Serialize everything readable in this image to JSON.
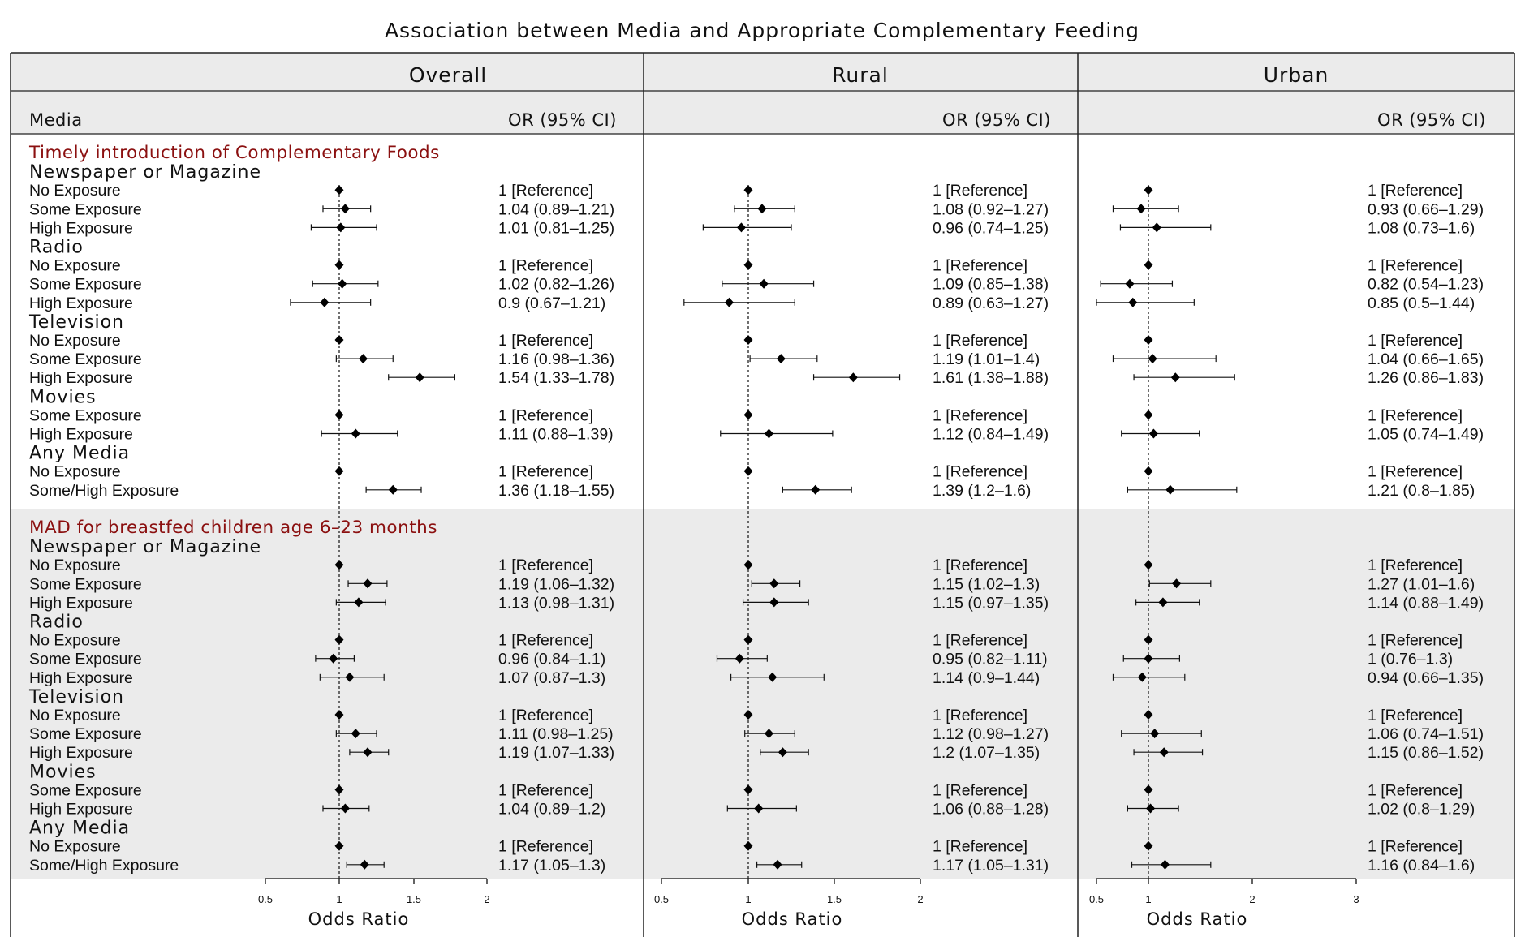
{
  "chart_data": {
    "type": "forest",
    "title": "Association between Media and Appropriate Complementary Feeding",
    "column_headers": {
      "label": "Media",
      "value": "OR (95% CI)"
    },
    "xlabel": "Odds Ratio",
    "reference_line": 1,
    "colors": {
      "section_text": "#8b1010",
      "shade": "#ebebeb",
      "header_band": "#ebebeb",
      "text": "#111111"
    },
    "panels": [
      {
        "name": "Overall",
        "ticks": [
          "0.5",
          "1",
          "1.5",
          "2"
        ],
        "xlim": [
          0.5,
          2
        ]
      },
      {
        "name": "Rural",
        "ticks": [
          "0.5",
          "1",
          "1.5",
          "2"
        ],
        "xlim": [
          0.5,
          2
        ]
      },
      {
        "name": "Urban",
        "ticks": [
          "0.5",
          "1",
          "2",
          "3"
        ],
        "xlim": [
          0.5,
          3
        ]
      }
    ],
    "sections": [
      {
        "title": "Timely introduction of Complementary Foods",
        "shaded": false,
        "groups": [
          {
            "name": "Newspaper or Magazine",
            "rows": [
              {
                "label": "No Exposure",
                "values": [
                  {
                    "or": 1,
                    "text": "1 [Reference]"
                  },
                  {
                    "or": 1,
                    "text": "1 [Reference]"
                  },
                  {
                    "or": 1,
                    "text": "1 [Reference]"
                  }
                ]
              },
              {
                "label": "Some Exposure",
                "values": [
                  {
                    "or": 1.04,
                    "lo": 0.89,
                    "hi": 1.21,
                    "text": "1.04 (0.89–1.21)"
                  },
                  {
                    "or": 1.08,
                    "lo": 0.92,
                    "hi": 1.27,
                    "text": "1.08 (0.92–1.27)"
                  },
                  {
                    "or": 0.93,
                    "lo": 0.66,
                    "hi": 1.29,
                    "text": "0.93 (0.66–1.29)"
                  }
                ]
              },
              {
                "label": "High Exposure",
                "values": [
                  {
                    "or": 1.01,
                    "lo": 0.81,
                    "hi": 1.25,
                    "text": "1.01 (0.81–1.25)"
                  },
                  {
                    "or": 0.96,
                    "lo": 0.74,
                    "hi": 1.25,
                    "text": "0.96 (0.74–1.25)"
                  },
                  {
                    "or": 1.08,
                    "lo": 0.73,
                    "hi": 1.6,
                    "text": "1.08 (0.73–1.6)"
                  }
                ]
              }
            ]
          },
          {
            "name": "Radio",
            "rows": [
              {
                "label": "No Exposure",
                "values": [
                  {
                    "or": 1,
                    "text": "1 [Reference]"
                  },
                  {
                    "or": 1,
                    "text": "1 [Reference]"
                  },
                  {
                    "or": 1,
                    "text": "1 [Reference]"
                  }
                ]
              },
              {
                "label": "Some Exposure",
                "values": [
                  {
                    "or": 1.02,
                    "lo": 0.82,
                    "hi": 1.26,
                    "text": "1.02 (0.82–1.26)"
                  },
                  {
                    "or": 1.09,
                    "lo": 0.85,
                    "hi": 1.38,
                    "text": "1.09 (0.85–1.38)"
                  },
                  {
                    "or": 0.82,
                    "lo": 0.54,
                    "hi": 1.23,
                    "text": "0.82 (0.54–1.23)"
                  }
                ]
              },
              {
                "label": "High Exposure",
                "values": [
                  {
                    "or": 0.9,
                    "lo": 0.67,
                    "hi": 1.21,
                    "text": "0.9 (0.67–1.21)"
                  },
                  {
                    "or": 0.89,
                    "lo": 0.63,
                    "hi": 1.27,
                    "text": "0.89 (0.63–1.27)"
                  },
                  {
                    "or": 0.85,
                    "lo": 0.5,
                    "hi": 1.44,
                    "text": "0.85 (0.5–1.44)"
                  }
                ]
              }
            ]
          },
          {
            "name": "Television",
            "rows": [
              {
                "label": "No Exposure",
                "values": [
                  {
                    "or": 1,
                    "text": "1 [Reference]"
                  },
                  {
                    "or": 1,
                    "text": "1 [Reference]"
                  },
                  {
                    "or": 1,
                    "text": "1 [Reference]"
                  }
                ]
              },
              {
                "label": "Some Exposure",
                "values": [
                  {
                    "or": 1.16,
                    "lo": 0.98,
                    "hi": 1.36,
                    "text": "1.16 (0.98–1.36)"
                  },
                  {
                    "or": 1.19,
                    "lo": 1.01,
                    "hi": 1.4,
                    "text": "1.19 (1.01–1.4)"
                  },
                  {
                    "or": 1.04,
                    "lo": 0.66,
                    "hi": 1.65,
                    "text": "1.04 (0.66–1.65)"
                  }
                ]
              },
              {
                "label": "High Exposure",
                "values": [
                  {
                    "or": 1.54,
                    "lo": 1.33,
                    "hi": 1.78,
                    "text": "1.54 (1.33–1.78)"
                  },
                  {
                    "or": 1.61,
                    "lo": 1.38,
                    "hi": 1.88,
                    "text": "1.61 (1.38–1.88)"
                  },
                  {
                    "or": 1.26,
                    "lo": 0.86,
                    "hi": 1.83,
                    "text": "1.26 (0.86–1.83)"
                  }
                ]
              }
            ]
          },
          {
            "name": "Movies",
            "rows": [
              {
                "label": "Some Exposure",
                "values": [
                  {
                    "or": 1,
                    "text": "1 [Reference]"
                  },
                  {
                    "or": 1,
                    "text": "1 [Reference]"
                  },
                  {
                    "or": 1,
                    "text": "1 [Reference]"
                  }
                ]
              },
              {
                "label": "High Exposure",
                "values": [
                  {
                    "or": 1.11,
                    "lo": 0.88,
                    "hi": 1.39,
                    "text": "1.11 (0.88–1.39)"
                  },
                  {
                    "or": 1.12,
                    "lo": 0.84,
                    "hi": 1.49,
                    "text": "1.12 (0.84–1.49)"
                  },
                  {
                    "or": 1.05,
                    "lo": 0.74,
                    "hi": 1.49,
                    "text": "1.05 (0.74–1.49)"
                  }
                ]
              }
            ]
          },
          {
            "name": "Any Media",
            "rows": [
              {
                "label": "No Exposure",
                "values": [
                  {
                    "or": 1,
                    "text": "1 [Reference]"
                  },
                  {
                    "or": 1,
                    "text": "1 [Reference]"
                  },
                  {
                    "or": 1,
                    "text": "1 [Reference]"
                  }
                ]
              },
              {
                "label": "Some/High Exposure",
                "values": [
                  {
                    "or": 1.36,
                    "lo": 1.18,
                    "hi": 1.55,
                    "text": "1.36 (1.18–1.55)"
                  },
                  {
                    "or": 1.39,
                    "lo": 1.2,
                    "hi": 1.6,
                    "text": "1.39 (1.2–1.6)"
                  },
                  {
                    "or": 1.21,
                    "lo": 0.8,
                    "hi": 1.85,
                    "text": "1.21 (0.8–1.85)"
                  }
                ]
              }
            ]
          }
        ]
      },
      {
        "title": "MAD for breastfed children age 6–23 months",
        "shaded": true,
        "groups": [
          {
            "name": "Newspaper or Magazine",
            "rows": [
              {
                "label": "No Exposure",
                "values": [
                  {
                    "or": 1,
                    "text": "1 [Reference]"
                  },
                  {
                    "or": 1,
                    "text": "1 [Reference]"
                  },
                  {
                    "or": 1,
                    "text": "1 [Reference]"
                  }
                ]
              },
              {
                "label": "Some Exposure",
                "values": [
                  {
                    "or": 1.19,
                    "lo": 1.06,
                    "hi": 1.32,
                    "text": "1.19 (1.06–1.32)"
                  },
                  {
                    "or": 1.15,
                    "lo": 1.02,
                    "hi": 1.3,
                    "text": "1.15 (1.02–1.3)"
                  },
                  {
                    "or": 1.27,
                    "lo": 1.01,
                    "hi": 1.6,
                    "text": "1.27 (1.01–1.6)"
                  }
                ]
              },
              {
                "label": "High Exposure",
                "values": [
                  {
                    "or": 1.13,
                    "lo": 0.98,
                    "hi": 1.31,
                    "text": "1.13 (0.98–1.31)"
                  },
                  {
                    "or": 1.15,
                    "lo": 0.97,
                    "hi": 1.35,
                    "text": "1.15 (0.97–1.35)"
                  },
                  {
                    "or": 1.14,
                    "lo": 0.88,
                    "hi": 1.49,
                    "text": "1.14 (0.88–1.49)"
                  }
                ]
              }
            ]
          },
          {
            "name": "Radio",
            "rows": [
              {
                "label": "No Exposure",
                "values": [
                  {
                    "or": 1,
                    "text": "1 [Reference]"
                  },
                  {
                    "or": 1,
                    "text": "1 [Reference]"
                  },
                  {
                    "or": 1,
                    "text": "1 [Reference]"
                  }
                ]
              },
              {
                "label": "Some Exposure",
                "values": [
                  {
                    "or": 0.96,
                    "lo": 0.84,
                    "hi": 1.1,
                    "text": "0.96 (0.84–1.1)"
                  },
                  {
                    "or": 0.95,
                    "lo": 0.82,
                    "hi": 1.11,
                    "text": "0.95 (0.82–1.11)"
                  },
                  {
                    "or": 1,
                    "lo": 0.76,
                    "hi": 1.3,
                    "text": "1 (0.76–1.3)"
                  }
                ]
              },
              {
                "label": "High Exposure",
                "values": [
                  {
                    "or": 1.07,
                    "lo": 0.87,
                    "hi": 1.3,
                    "text": "1.07 (0.87–1.3)"
                  },
                  {
                    "or": 1.14,
                    "lo": 0.9,
                    "hi": 1.44,
                    "text": "1.14 (0.9–1.44)"
                  },
                  {
                    "or": 0.94,
                    "lo": 0.66,
                    "hi": 1.35,
                    "text": "0.94 (0.66–1.35)"
                  }
                ]
              }
            ]
          },
          {
            "name": "Television",
            "rows": [
              {
                "label": "No Exposure",
                "values": [
                  {
                    "or": 1,
                    "text": "1 [Reference]"
                  },
                  {
                    "or": 1,
                    "text": "1 [Reference]"
                  },
                  {
                    "or": 1,
                    "text": "1 [Reference]"
                  }
                ]
              },
              {
                "label": "Some Exposure",
                "values": [
                  {
                    "or": 1.11,
                    "lo": 0.98,
                    "hi": 1.25,
                    "text": "1.11 (0.98–1.25)"
                  },
                  {
                    "or": 1.12,
                    "lo": 0.98,
                    "hi": 1.27,
                    "text": "1.12 (0.98–1.27)"
                  },
                  {
                    "or": 1.06,
                    "lo": 0.74,
                    "hi": 1.51,
                    "text": "1.06 (0.74–1.51)"
                  }
                ]
              },
              {
                "label": "High Exposure",
                "values": [
                  {
                    "or": 1.19,
                    "lo": 1.07,
                    "hi": 1.33,
                    "text": "1.19 (1.07–1.33)"
                  },
                  {
                    "or": 1.2,
                    "lo": 1.07,
                    "hi": 1.35,
                    "text": "1.2 (1.07–1.35)"
                  },
                  {
                    "or": 1.15,
                    "lo": 0.86,
                    "hi": 1.52,
                    "text": "1.15 (0.86–1.52)"
                  }
                ]
              }
            ]
          },
          {
            "name": "Movies",
            "rows": [
              {
                "label": "Some Exposure",
                "values": [
                  {
                    "or": 1,
                    "text": "1 [Reference]"
                  },
                  {
                    "or": 1,
                    "text": "1 [Reference]"
                  },
                  {
                    "or": 1,
                    "text": "1 [Reference]"
                  }
                ]
              },
              {
                "label": "High Exposure",
                "values": [
                  {
                    "or": 1.04,
                    "lo": 0.89,
                    "hi": 1.2,
                    "text": "1.04 (0.89–1.2)"
                  },
                  {
                    "or": 1.06,
                    "lo": 0.88,
                    "hi": 1.28,
                    "text": "1.06 (0.88–1.28)"
                  },
                  {
                    "or": 1.02,
                    "lo": 0.8,
                    "hi": 1.29,
                    "text": "1.02 (0.8–1.29)"
                  }
                ]
              }
            ]
          },
          {
            "name": "Any Media",
            "rows": [
              {
                "label": "No Exposure",
                "values": [
                  {
                    "or": 1,
                    "text": "1 [Reference]"
                  },
                  {
                    "or": 1,
                    "text": "1 [Reference]"
                  },
                  {
                    "or": 1,
                    "text": "1 [Reference]"
                  }
                ]
              },
              {
                "label": "Some/High Exposure",
                "values": [
                  {
                    "or": 1.17,
                    "lo": 1.05,
                    "hi": 1.3,
                    "text": "1.17 (1.05–1.3)"
                  },
                  {
                    "or": 1.17,
                    "lo": 1.05,
                    "hi": 1.31,
                    "text": "1.17 (1.05–1.31)"
                  },
                  {
                    "or": 1.16,
                    "lo": 0.84,
                    "hi": 1.6,
                    "text": "1.16 (0.84–1.6)"
                  }
                ]
              }
            ]
          }
        ]
      }
    ]
  }
}
